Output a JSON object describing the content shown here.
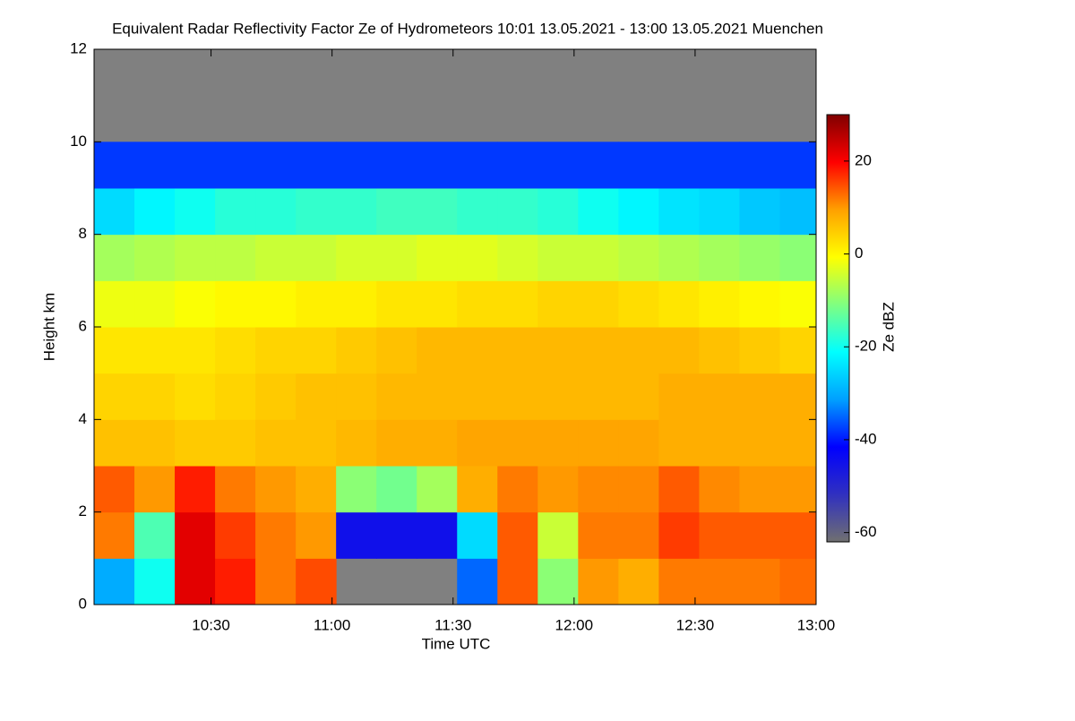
{
  "chart_data": {
    "type": "heatmap",
    "title": "Equivalent Radar Reflectivity Factor Ze of Hydrometeors   10:01 13.05.2021 - 13:00 13.05.2021 Muenchen",
    "xlabel": "Time UTC",
    "ylabel": "Height km",
    "colorbar_label": "Ze dBZ",
    "xlim": [
      "10:01",
      "13:00"
    ],
    "xticks": [
      "10:30",
      "11:00",
      "11:30",
      "12:00",
      "12:30",
      "13:00"
    ],
    "ylim": [
      0,
      12
    ],
    "yticks": [
      0,
      2,
      4,
      6,
      8,
      10,
      12
    ],
    "clim": [
      -62,
      30
    ],
    "cticks": [
      -60,
      -40,
      -20,
      0,
      20
    ],
    "colormap": [
      "#707070",
      "#3030c0",
      "#0000ff",
      "#00a0ff",
      "#00ffff",
      "#80ff80",
      "#ffff00",
      "#ffa000",
      "#ff0000",
      "#800000"
    ],
    "missing_color": "#808080",
    "xbins": [
      "10:01",
      "10:11",
      "10:21",
      "10:31",
      "10:41",
      "10:51",
      "11:01",
      "11:11",
      "11:21",
      "11:31",
      "11:41",
      "11:51",
      "12:01",
      "12:11",
      "12:21",
      "12:31",
      "12:41",
      "12:51",
      "13:00"
    ],
    "ybins": [
      0,
      1,
      2,
      3,
      4,
      5,
      6,
      7,
      8,
      9,
      10,
      11,
      12
    ],
    "values": [
      [
        -30,
        -20,
        22,
        18,
        12,
        15,
        null,
        null,
        null,
        -35,
        14,
        -10,
        10,
        8,
        12,
        12,
        12,
        13
      ],
      [
        12,
        -15,
        22,
        16,
        12,
        10,
        -45,
        -45,
        -45,
        -25,
        14,
        -5,
        12,
        12,
        16,
        14,
        14,
        14
      ],
      [
        14,
        10,
        18,
        12,
        10,
        8,
        -10,
        -12,
        -8,
        8,
        12,
        10,
        11,
        11,
        14,
        11,
        10,
        10
      ],
      [
        6,
        6,
        5,
        5,
        6,
        6,
        7,
        8,
        8,
        9,
        9,
        9,
        9,
        9,
        8,
        8,
        8,
        8
      ],
      [
        4,
        4,
        3,
        4,
        5,
        6,
        6,
        7,
        7,
        7,
        7,
        7,
        7,
        7,
        8,
        8,
        8,
        8
      ],
      [
        2,
        2,
        2,
        3,
        4,
        4,
        5,
        6,
        7,
        7,
        7,
        7,
        7,
        7,
        7,
        6,
        5,
        4
      ],
      [
        -2,
        -2,
        -1,
        0,
        0,
        1,
        1,
        2,
        2,
        3,
        3,
        4,
        4,
        3,
        2,
        1,
        0,
        -1
      ],
      [
        -8,
        -7,
        -6,
        -6,
        -5,
        -5,
        -4,
        -4,
        -3,
        -3,
        -4,
        -5,
        -5,
        -6,
        -7,
        -8,
        -9,
        -10
      ],
      [
        -25,
        -22,
        -20,
        -18,
        -18,
        -17,
        -17,
        -16,
        -16,
        -17,
        -17,
        -18,
        -20,
        -22,
        -24,
        -25,
        -27,
        -28
      ],
      [
        -38,
        -38,
        -38,
        -38,
        -38,
        -38,
        -38,
        -38,
        -38,
        -38,
        -38,
        -38,
        -38,
        -38,
        -38,
        -38,
        -38,
        -38
      ],
      [
        null,
        null,
        null,
        null,
        null,
        null,
        null,
        null,
        null,
        null,
        null,
        null,
        null,
        null,
        null,
        null,
        null,
        null
      ],
      [
        null,
        null,
        null,
        null,
        null,
        null,
        null,
        null,
        null,
        null,
        null,
        null,
        null,
        null,
        null,
        null,
        null,
        null
      ]
    ]
  }
}
